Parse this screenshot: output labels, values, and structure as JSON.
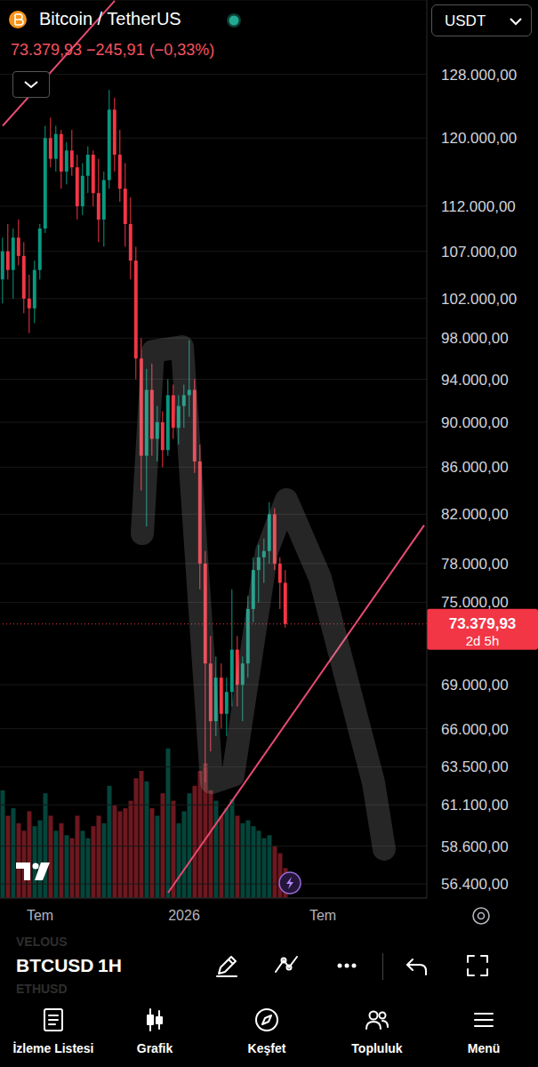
{
  "chart_data": {
    "type": "candlestick",
    "title": "Bitcoin / TetherUS",
    "subtitle": "73.379,93 −245,91 (−0,33%)",
    "categories": [
      null,
      null,
      null,
      null,
      null,
      null,
      null,
      "Tem",
      null,
      null,
      null,
      null,
      null,
      null,
      null,
      null,
      null,
      null,
      null,
      null,
      null,
      null,
      null,
      null,
      null,
      null,
      null,
      null,
      null,
      null,
      null,
      null,
      null,
      null,
      "2026",
      null,
      null,
      null,
      null,
      null,
      null,
      null,
      null,
      null,
      null,
      null,
      null,
      null,
      null,
      null,
      null,
      null,
      null,
      null,
      null,
      null,
      null,
      null,
      null,
      null,
      "Tem",
      null,
      null,
      null,
      null,
      null,
      null,
      null,
      null,
      null,
      null,
      null,
      null,
      null,
      null,
      null,
      null,
      null,
      null,
      null
    ],
    "series": [
      {
        "type": "candlestick",
        "open": [
          104000,
          107000,
          105000,
          108500,
          106500,
          102000,
          101000,
          105000,
          109500,
          120000,
          117500,
          120500,
          116000,
          118500,
          116500,
          112000,
          115500,
          118000,
          113500,
          110500,
          115000,
          123500,
          118000,
          114000,
          110000,
          106000,
          96000,
          87000,
          93000,
          88500,
          90000,
          87500,
          92500,
          89500,
          91500,
          92500,
          93000,
          86500,
          78000,
          70500,
          66500,
          69500,
          67000,
          68500,
          71500,
          69000,
          70500,
          74500,
          77500,
          78500,
          79000,
          82000,
          78000,
          76500,
          null,
          null,
          null,
          null,
          null,
          null,
          null,
          null,
          null,
          null,
          null,
          null,
          null,
          null,
          null,
          null,
          null,
          null,
          null,
          null,
          null,
          null,
          null,
          null,
          null,
          null
        ],
        "high": [
          108500,
          110000,
          109500,
          110500,
          108000,
          104500,
          106000,
          110000,
          121500,
          122500,
          121500,
          121000,
          119500,
          121000,
          118000,
          117000,
          119000,
          118500,
          117500,
          116000,
          126000,
          125000,
          121000,
          117000,
          113000,
          107500,
          98000,
          95000,
          95500,
          91500,
          91000,
          94000,
          93500,
          92500,
          93500,
          97800,
          94000,
          88000,
          79000,
          72500,
          71000,
          70500,
          69500,
          76000,
          72500,
          71000,
          75500,
          78500,
          79500,
          80000,
          83000,
          82500,
          78500,
          77500,
          null,
          null,
          null,
          null,
          null,
          null,
          null,
          null,
          null,
          null,
          null,
          null,
          null,
          null,
          null,
          null,
          null,
          null,
          null,
          null,
          null,
          null,
          null,
          null,
          null,
          null
        ],
        "low": [
          101500,
          104000,
          102000,
          105500,
          100500,
          98500,
          99500,
          104000,
          109000,
          116500,
          116000,
          114000,
          114500,
          115500,
          110500,
          111000,
          113500,
          112000,
          108000,
          107500,
          114000,
          116000,
          112500,
          107500,
          104000,
          94000,
          84000,
          81000,
          87000,
          86500,
          86000,
          87000,
          88500,
          88000,
          89500,
          90500,
          85500,
          76000,
          62500,
          64500,
          65500,
          66000,
          65500,
          67500,
          67500,
          66500,
          69500,
          73500,
          75000,
          76500,
          78000,
          77500,
          74500,
          73100,
          null,
          null,
          null,
          null,
          null,
          null,
          null,
          null,
          null,
          null,
          null,
          null,
          null,
          null,
          null,
          null,
          null,
          null,
          null,
          null,
          null,
          null,
          null,
          null,
          null,
          null
        ],
        "close": [
          107000,
          105000,
          108500,
          106500,
          102000,
          101000,
          105000,
          109500,
          120000,
          117500,
          120500,
          116000,
          118500,
          116500,
          112000,
          115500,
          118000,
          113500,
          110500,
          115000,
          123500,
          118000,
          114000,
          110000,
          106000,
          96000,
          87000,
          93000,
          88500,
          90000,
          87500,
          92500,
          89500,
          91500,
          92500,
          93000,
          86500,
          78000,
          70500,
          66500,
          69500,
          67000,
          68500,
          71500,
          69000,
          70500,
          74500,
          77500,
          78500,
          79000,
          82000,
          78000,
          76500,
          73379.93,
          null,
          null,
          null,
          null,
          null,
          null,
          null,
          null,
          null,
          null,
          null,
          null,
          null,
          null,
          null,
          null,
          null,
          null,
          null,
          null,
          null,
          null,
          null,
          null,
          null,
          null
        ],
        "colors": [
          "#089981",
          "#f23645",
          "#089981",
          "#f23645",
          "#f23645",
          "#f23645",
          "#089981",
          "#089981",
          "#089981",
          "#f23645",
          "#089981",
          "#f23645",
          "#089981",
          "#f23645",
          "#f23645",
          "#089981",
          "#089981",
          "#f23645",
          "#f23645",
          "#089981",
          "#089981",
          "#f23645",
          "#f23645",
          "#f23645",
          "#f23645",
          "#f23645",
          "#f23645",
          "#089981",
          "#f23645",
          "#089981",
          "#f23645",
          "#089981",
          "#f23645",
          "#089981",
          "#089981",
          "#089981",
          "#f23645",
          "#f23645",
          "#f23645",
          "#f23645",
          "#089981",
          "#f23645",
          "#089981",
          "#089981",
          "#f23645",
          "#089981",
          "#089981",
          "#089981",
          "#089981",
          "#089981",
          "#089981",
          "#f23645",
          "#f23645",
          "#f23645",
          null,
          null,
          null,
          null,
          null,
          null,
          null,
          null,
          null,
          null,
          null,
          null,
          null,
          null,
          null,
          null,
          null,
          null,
          null,
          null,
          null,
          null,
          null,
          null,
          null,
          null
        ]
      },
      {
        "type": "bar",
        "axis": "y2",
        "values": [
          72,
          55,
          60,
          50,
          45,
          58,
          48,
          52,
          70,
          55,
          45,
          50,
          42,
          40,
          55,
          45,
          40,
          48,
          55,
          50,
          75,
          62,
          58,
          60,
          65,
          80,
          85,
          78,
          60,
          55,
          70,
          100,
          65,
          50,
          58,
          70,
          75,
          85,
          90,
          72,
          65,
          55,
          60,
          66,
          55,
          50,
          52,
          48,
          45,
          40,
          42,
          35,
          30,
          20,
          null,
          null,
          null,
          null,
          null,
          null,
          null,
          null,
          null,
          null,
          null,
          null,
          null,
          null,
          null,
          null,
          null,
          null,
          null,
          null,
          null,
          null,
          null,
          null,
          null,
          null
        ]
      }
    ],
    "log": "y",
    "grid": true,
    "ylim": [
      55600,
      138000
    ],
    "yticks": [
      {
        "value": 128000,
        "label": "128.000,00"
      },
      {
        "value": 120000,
        "label": "120.000,00"
      },
      {
        "value": 112000,
        "label": "112.000,00"
      },
      {
        "value": 107000,
        "label": "107.000,00"
      },
      {
        "value": 102000,
        "label": "102.000,00"
      },
      {
        "value": 98000,
        "label": "98.000,00"
      },
      {
        "value": 94000,
        "label": "94.000,00"
      },
      {
        "value": 90000,
        "label": "90.000,00"
      },
      {
        "value": 86000,
        "label": "86.000,00"
      },
      {
        "value": 82000,
        "label": "82.000,00"
      },
      {
        "value": 78000,
        "label": "78.000,00"
      },
      {
        "value": 75000,
        "label": "75.000,00"
      },
      {
        "value": 69000,
        "label": "69.000,00"
      },
      {
        "value": 66000,
        "label": "66.000,00"
      },
      {
        "value": 63500,
        "label": "63.500,00"
      },
      {
        "value": 61100,
        "label": "61.100,00"
      },
      {
        "value": 58600,
        "label": "58.600,00"
      },
      {
        "value": 56400,
        "label": "56.400,00"
      }
    ],
    "y2lim": [
      0,
      600
    ],
    "trend_lines": [
      {
        "color": "#e84a72",
        "points": [
          [
            0,
            121500
          ],
          [
            21,
            137900
          ]
        ]
      },
      {
        "color": "#e84a72",
        "points": [
          [
            31,
            55900
          ],
          [
            79,
            81100
          ]
        ]
      }
    ],
    "last_price": {
      "value": 73379.93,
      "label": "73.379,93",
      "countdown": "2d 5h",
      "color": "#f23645"
    }
  },
  "screen": {
    "currency": "USDT",
    "tickers": [
      "VELOUS",
      "BTCUSD",
      "ETHUSD"
    ],
    "interval": "1H",
    "nav": [
      "İzleme Listesi",
      "Grafik",
      "Keşfet",
      "Topluluk",
      "Menü"
    ]
  }
}
